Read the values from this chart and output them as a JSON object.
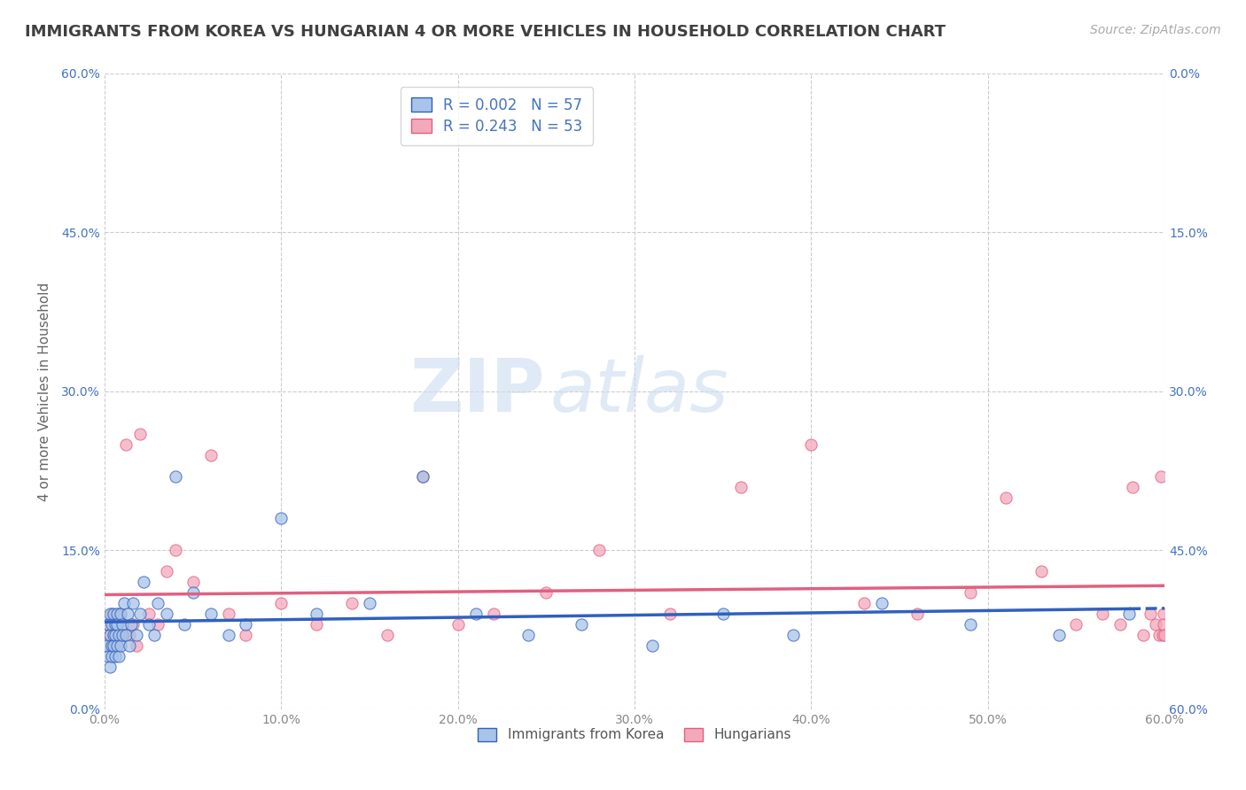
{
  "title": "IMMIGRANTS FROM KOREA VS HUNGARIAN 4 OR MORE VEHICLES IN HOUSEHOLD CORRELATION CHART",
  "source": "Source: ZipAtlas.com",
  "ylabel": "4 or more Vehicles in Household",
  "xlim": [
    0.0,
    0.6
  ],
  "ylim": [
    0.0,
    0.6
  ],
  "xticks": [
    0.0,
    0.1,
    0.2,
    0.3,
    0.4,
    0.5,
    0.6
  ],
  "yticks": [
    0.0,
    0.15,
    0.3,
    0.45,
    0.6
  ],
  "xtick_labels": [
    "0.0%",
    "10.0%",
    "20.0%",
    "30.0%",
    "40.0%",
    "50.0%",
    "60.0%"
  ],
  "ytick_labels": [
    "0.0%",
    "15.0%",
    "30.0%",
    "45.0%",
    "60.0%"
  ],
  "series1_color": "#a8c4e8",
  "series2_color": "#f4a8bc",
  "line1_color": "#3060c0",
  "line2_color": "#e06080",
  "background_color": "#ffffff",
  "grid_color": "#cccccc",
  "title_color": "#404040",
  "label_color": "#4472c4",
  "series1_x": [
    0.001,
    0.002,
    0.002,
    0.003,
    0.003,
    0.003,
    0.004,
    0.004,
    0.004,
    0.005,
    0.005,
    0.005,
    0.006,
    0.006,
    0.006,
    0.007,
    0.007,
    0.007,
    0.008,
    0.008,
    0.009,
    0.009,
    0.01,
    0.01,
    0.011,
    0.012,
    0.013,
    0.014,
    0.015,
    0.016,
    0.018,
    0.02,
    0.022,
    0.025,
    0.028,
    0.03,
    0.035,
    0.04,
    0.045,
    0.05,
    0.06,
    0.07,
    0.08,
    0.1,
    0.12,
    0.15,
    0.18,
    0.21,
    0.24,
    0.27,
    0.31,
    0.35,
    0.39,
    0.44,
    0.49,
    0.54,
    0.58
  ],
  "series1_y": [
    0.06,
    0.05,
    0.08,
    0.07,
    0.04,
    0.09,
    0.06,
    0.08,
    0.05,
    0.07,
    0.09,
    0.06,
    0.08,
    0.05,
    0.07,
    0.09,
    0.06,
    0.08,
    0.07,
    0.05,
    0.09,
    0.06,
    0.08,
    0.07,
    0.1,
    0.07,
    0.09,
    0.06,
    0.08,
    0.1,
    0.07,
    0.09,
    0.12,
    0.08,
    0.07,
    0.1,
    0.09,
    0.22,
    0.08,
    0.11,
    0.09,
    0.07,
    0.08,
    0.18,
    0.09,
    0.1,
    0.22,
    0.09,
    0.07,
    0.08,
    0.06,
    0.09,
    0.07,
    0.1,
    0.08,
    0.07,
    0.09
  ],
  "series2_x": [
    0.001,
    0.002,
    0.003,
    0.004,
    0.005,
    0.006,
    0.007,
    0.008,
    0.009,
    0.01,
    0.012,
    0.014,
    0.016,
    0.018,
    0.02,
    0.025,
    0.03,
    0.035,
    0.04,
    0.05,
    0.06,
    0.07,
    0.08,
    0.1,
    0.12,
    0.14,
    0.16,
    0.18,
    0.2,
    0.22,
    0.25,
    0.28,
    0.32,
    0.36,
    0.4,
    0.43,
    0.46,
    0.49,
    0.51,
    0.53,
    0.55,
    0.565,
    0.575,
    0.582,
    0.588,
    0.592,
    0.595,
    0.597,
    0.598,
    0.599,
    0.5993,
    0.5995,
    0.5997
  ],
  "series2_y": [
    0.06,
    0.08,
    0.07,
    0.09,
    0.07,
    0.08,
    0.06,
    0.09,
    0.07,
    0.08,
    0.25,
    0.07,
    0.08,
    0.06,
    0.26,
    0.09,
    0.08,
    0.13,
    0.15,
    0.12,
    0.24,
    0.09,
    0.07,
    0.1,
    0.08,
    0.1,
    0.07,
    0.22,
    0.08,
    0.09,
    0.11,
    0.15,
    0.09,
    0.21,
    0.25,
    0.1,
    0.09,
    0.11,
    0.2,
    0.13,
    0.08,
    0.09,
    0.08,
    0.21,
    0.07,
    0.09,
    0.08,
    0.07,
    0.22,
    0.07,
    0.09,
    0.08,
    0.07
  ]
}
